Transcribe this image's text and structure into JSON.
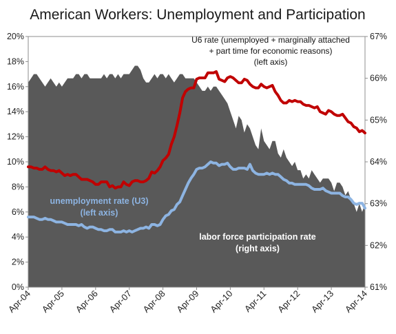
{
  "chart_data": {
    "type": "area",
    "title": "American Workers: Unemployment and Participation",
    "x_categories": [
      "Apr-04",
      "Apr-05",
      "Apr-06",
      "Apr-07",
      "Apr-08",
      "Apr-09",
      "Apr-10",
      "Apr-11",
      "Apr-12",
      "Apr-13",
      "Apr-14"
    ],
    "left_axis": {
      "ylim": [
        0,
        20
      ],
      "ticks": [
        "0%",
        "2%",
        "4%",
        "6%",
        "8%",
        "10%",
        "12%",
        "14%",
        "16%",
        "18%",
        "20%"
      ]
    },
    "right_axis": {
      "ylim": [
        61,
        67
      ],
      "ticks": [
        "61%",
        "62%",
        "63%",
        "64%",
        "65%",
        "66%",
        "67%"
      ]
    },
    "annotations": {
      "u6": [
        "U6 rate (unemployed + marginally attached",
        "+ part time for economic reasons)",
        "(left axis)"
      ],
      "u3": [
        "unemployment rate (U3)",
        "(left axis)"
      ],
      "lfpr": [
        "labor force participation rate",
        "(right axis)"
      ]
    },
    "colors": {
      "participation": "#595959",
      "u6": "#c00000",
      "u3": "#8db4e2"
    },
    "series": [
      {
        "name": "labor force participation rate",
        "axis": "right",
        "x": [
          0,
          1,
          2,
          3,
          4,
          5,
          6,
          7,
          8,
          9,
          10,
          11,
          12,
          13,
          14,
          15,
          16,
          17,
          18,
          19,
          20,
          21,
          22,
          23,
          24,
          25,
          26,
          27,
          28,
          29,
          30,
          31,
          32,
          33,
          34,
          35,
          36,
          37,
          38,
          39,
          40,
          41,
          42,
          43,
          44,
          45,
          46,
          47,
          48,
          49,
          50,
          51,
          52,
          53,
          54,
          55,
          56,
          57,
          58,
          59,
          60,
          61,
          62,
          63,
          64,
          65,
          66,
          67,
          68,
          69,
          70,
          71,
          72,
          73,
          74,
          75,
          76,
          77,
          78,
          79,
          80,
          81,
          82,
          83,
          84,
          85,
          86,
          87,
          88,
          89,
          90,
          91,
          92,
          93,
          94,
          95,
          96,
          97,
          98,
          99,
          100,
          101,
          102,
          103,
          104,
          105,
          106,
          107,
          108,
          109,
          110,
          111,
          112,
          113,
          114,
          115,
          116,
          117,
          118,
          119,
          120
        ],
        "values": [
          65.9,
          66.0,
          66.1,
          66.1,
          66.0,
          65.9,
          65.8,
          65.9,
          66.0,
          65.9,
          65.8,
          65.9,
          65.8,
          65.9,
          66.0,
          66.0,
          66.0,
          66.1,
          66.1,
          66.0,
          66.1,
          66.1,
          66.0,
          66.0,
          66.0,
          66.0,
          66.0,
          66.1,
          66.0,
          66.1,
          66.1,
          66.0,
          66.1,
          66.0,
          66.1,
          66.1,
          66.1,
          66.2,
          66.3,
          66.3,
          66.2,
          66.0,
          65.9,
          65.9,
          66.0,
          66.1,
          66.0,
          66.1,
          66.1,
          66.0,
          66.1,
          66.0,
          65.9,
          66.0,
          66.1,
          66.1,
          66.0,
          66.0,
          66.0,
          66.0,
          65.9,
          65.8,
          65.7,
          65.7,
          65.8,
          65.7,
          65.8,
          65.8,
          65.7,
          65.6,
          65.5,
          65.4,
          65.2,
          65.0,
          64.8,
          65.1,
          65.0,
          64.7,
          64.9,
          64.8,
          64.6,
          64.4,
          64.3,
          64.8,
          64.5,
          64.4,
          64.3,
          64.5,
          64.5,
          64.2,
          64.1,
          64.3,
          64.1,
          64.0,
          63.9,
          64.0,
          63.8,
          63.8,
          63.6,
          63.7,
          63.6,
          63.8,
          63.7,
          63.6,
          63.5,
          63.6,
          63.6,
          63.6,
          63.5,
          63.3,
          63.5,
          63.5,
          63.4,
          63.2,
          63.3,
          63.1,
          63.0,
          62.8,
          63.0,
          62.8,
          63.0
        ]
      },
      {
        "name": "U6 rate",
        "axis": "left",
        "x": [
          0,
          1,
          2,
          3,
          4,
          5,
          6,
          7,
          8,
          9,
          10,
          11,
          12,
          13,
          14,
          15,
          16,
          17,
          18,
          19,
          20,
          21,
          22,
          23,
          24,
          25,
          26,
          27,
          28,
          29,
          30,
          31,
          32,
          33,
          34,
          35,
          36,
          37,
          38,
          39,
          40,
          41,
          42,
          43,
          44,
          45,
          46,
          47,
          48,
          49,
          50,
          51,
          52,
          53,
          54,
          55,
          56,
          57,
          58,
          59,
          60,
          61,
          62,
          63,
          64,
          65,
          66,
          67,
          68,
          69,
          70,
          71,
          72,
          73,
          74,
          75,
          76,
          77,
          78,
          79,
          80,
          81,
          82,
          83,
          84,
          85,
          86,
          87,
          88,
          89,
          90,
          91,
          92,
          93,
          94,
          95,
          96,
          97,
          98,
          99,
          100,
          101,
          102,
          103,
          104,
          105,
          106,
          107,
          108,
          109,
          110,
          111,
          112,
          113,
          114,
          115,
          116,
          117,
          118,
          119,
          120
        ],
        "values": [
          9.6,
          9.6,
          9.5,
          9.5,
          9.4,
          9.4,
          9.6,
          9.4,
          9.3,
          9.3,
          9.2,
          9.3,
          9.1,
          8.9,
          9.0,
          8.9,
          9.0,
          9.0,
          8.8,
          8.6,
          8.6,
          8.6,
          8.5,
          8.4,
          8.2,
          8.2,
          8.4,
          8.4,
          8.4,
          8.0,
          8.1,
          7.9,
          8.0,
          8.0,
          8.4,
          8.2,
          8.1,
          8.4,
          8.5,
          8.5,
          8.4,
          8.4,
          8.5,
          8.7,
          9.2,
          9.1,
          9.3,
          9.6,
          10.1,
          10.3,
          10.6,
          11.4,
          12.0,
          12.9,
          13.9,
          15.1,
          15.6,
          15.8,
          15.9,
          15.9,
          16.6,
          16.7,
          16.7,
          16.7,
          17.1,
          17.1,
          17.1,
          17.2,
          16.6,
          16.5,
          16.4,
          16.7,
          16.8,
          16.7,
          16.5,
          16.3,
          16.3,
          16.6,
          16.5,
          16.2,
          16.0,
          15.9,
          15.9,
          16.2,
          16.0,
          15.9,
          16.0,
          16.1,
          15.6,
          15.3,
          14.9,
          14.7,
          14.7,
          14.9,
          14.8,
          14.9,
          14.8,
          14.8,
          14.6,
          14.5,
          14.5,
          14.4,
          14.3,
          14.4,
          14.0,
          13.9,
          13.8,
          14.1,
          14.0,
          13.8,
          13.7,
          13.7,
          13.8,
          13.5,
          13.2,
          13.1,
          12.8,
          12.7,
          12.4,
          12.5,
          12.3
        ]
      },
      {
        "name": "unemployment rate (U3)",
        "axis": "left",
        "x": [
          0,
          1,
          2,
          3,
          4,
          5,
          6,
          7,
          8,
          9,
          10,
          11,
          12,
          13,
          14,
          15,
          16,
          17,
          18,
          19,
          20,
          21,
          22,
          23,
          24,
          25,
          26,
          27,
          28,
          29,
          30,
          31,
          32,
          33,
          34,
          35,
          36,
          37,
          38,
          39,
          40,
          41,
          42,
          43,
          44,
          45,
          46,
          47,
          48,
          49,
          50,
          51,
          52,
          53,
          54,
          55,
          56,
          57,
          58,
          59,
          60,
          61,
          62,
          63,
          64,
          65,
          66,
          67,
          68,
          69,
          70,
          71,
          72,
          73,
          74,
          75,
          76,
          77,
          78,
          79,
          80,
          81,
          82,
          83,
          84,
          85,
          86,
          87,
          88,
          89,
          90,
          91,
          92,
          93,
          94,
          95,
          96,
          97,
          98,
          99,
          100,
          101,
          102,
          103,
          104,
          105,
          106,
          107,
          108,
          109,
          110,
          111,
          112,
          113,
          114,
          115,
          116,
          117,
          118,
          119,
          120
        ],
        "values": [
          5.6,
          5.6,
          5.6,
          5.5,
          5.4,
          5.4,
          5.5,
          5.4,
          5.4,
          5.3,
          5.2,
          5.2,
          5.2,
          5.1,
          5.0,
          5.0,
          5.0,
          5.0,
          4.9,
          5.0,
          4.8,
          4.7,
          4.8,
          4.8,
          4.7,
          4.6,
          4.6,
          4.5,
          4.5,
          4.6,
          4.6,
          4.4,
          4.4,
          4.4,
          4.5,
          4.4,
          4.5,
          4.4,
          4.5,
          4.6,
          4.7,
          4.7,
          4.8,
          4.7,
          5.0,
          5.0,
          4.9,
          5.0,
          5.4,
          5.7,
          5.8,
          6.1,
          6.2,
          6.6,
          6.8,
          7.3,
          7.8,
          8.3,
          8.7,
          9.0,
          9.4,
          9.5,
          9.5,
          9.6,
          9.8,
          10.0,
          9.9,
          9.9,
          9.7,
          9.8,
          9.8,
          9.9,
          9.6,
          9.4,
          9.4,
          9.5,
          9.5,
          9.5,
          9.4,
          9.8,
          9.3,
          9.1,
          9.0,
          9.0,
          9.0,
          9.1,
          9.0,
          9.1,
          9.0,
          9.0,
          8.8,
          8.6,
          8.5,
          8.3,
          8.3,
          8.2,
          8.2,
          8.2,
          8.2,
          8.2,
          8.1,
          7.9,
          7.8,
          7.8,
          7.8,
          7.9,
          7.7,
          7.6,
          7.5,
          7.5,
          7.5,
          7.5,
          7.3,
          7.2,
          7.2,
          7.0,
          6.7,
          6.6,
          6.7,
          6.7,
          6.3
        ]
      }
    ]
  }
}
